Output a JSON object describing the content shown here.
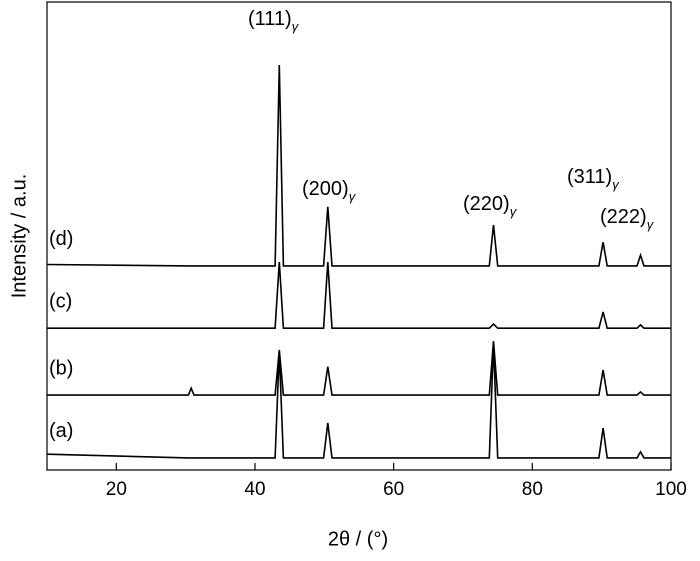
{
  "chart_data": {
    "type": "line",
    "xlabel": "2θ / (°)",
    "ylabel": "Intensity / a.u.",
    "x": [
      10,
      30.4,
      30.8,
      31.2,
      42.9,
      43.5,
      44.1,
      49.9,
      50.5,
      51.1,
      73.8,
      74.4,
      75.0,
      89.6,
      90.2,
      90.8,
      95.1,
      95.6,
      96.1,
      100
    ],
    "series": [
      {
        "name": "(a)",
        "color": "#000000",
        "values": [
          3.4,
          2.6,
          2.6,
          2.6,
          2.6,
          25.4,
          2.6,
          2.6,
          10.1,
          2.6,
          2.6,
          27.3,
          2.6,
          2.6,
          9.0,
          2.6,
          2.6,
          3.9,
          2.6,
          2.6
        ]
      },
      {
        "name": "(b)",
        "color": "#000000",
        "values": [
          16.1,
          16.1,
          17.6,
          16.1,
          16.1,
          25.8,
          16.1,
          16.1,
          22.2,
          16.1,
          16.1,
          27.7,
          16.1,
          16.1,
          21.5,
          16.1,
          16.1,
          16.8,
          16.1,
          16.1
        ]
      },
      {
        "name": "(c)",
        "color": "#000000",
        "values": [
          30.5,
          30.5,
          30.5,
          30.5,
          30.5,
          44.7,
          30.5,
          30.5,
          44.7,
          30.5,
          30.5,
          31.4,
          30.5,
          30.5,
          34.0,
          30.5,
          30.5,
          31.2,
          30.5,
          30.5
        ]
      },
      {
        "name": "(d)",
        "color": "#000000",
        "values": [
          44.2,
          43.9,
          43.9,
          43.9,
          43.9,
          87.1,
          43.9,
          43.9,
          56.6,
          43.9,
          43.9,
          52.7,
          43.9,
          43.9,
          49.0,
          43.9,
          43.9,
          46.2,
          43.9,
          43.9
        ]
      }
    ],
    "annotations": [
      {
        "text": "(111)",
        "sub": "γ"
      },
      {
        "text": "(200)",
        "sub": "γ"
      },
      {
        "text": "(220)",
        "sub": "γ"
      },
      {
        "text": "(311)",
        "sub": "γ"
      },
      {
        "text": "(222)",
        "sub": "γ"
      }
    ],
    "xlim": [
      10,
      100
    ],
    "xticks": [
      20,
      40,
      60,
      80,
      100
    ],
    "ylim": [
      0,
      100
    ]
  }
}
